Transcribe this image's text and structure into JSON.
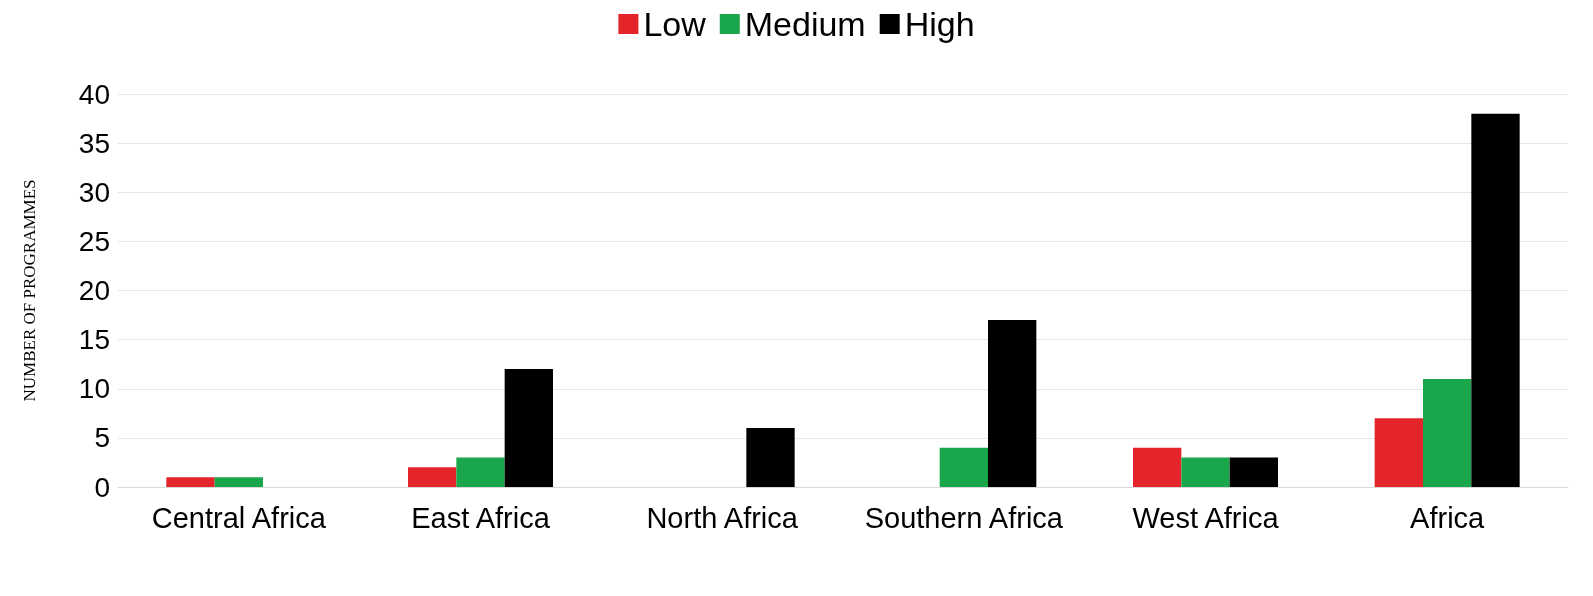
{
  "chart_data": {
    "type": "bar",
    "ylabel": "NUMBER OF PROGRAMMES",
    "categories": [
      "Central Africa",
      "East Africa",
      "North Africa",
      "Southern Africa",
      "West Africa",
      "Africa"
    ],
    "series": [
      {
        "name": "Low",
        "color": "#e3242b",
        "values": [
          1,
          2,
          0,
          0,
          4,
          7
        ]
      },
      {
        "name": "Medium",
        "color": "#1aa64a",
        "values": [
          1,
          3,
          0,
          4,
          3,
          11
        ]
      },
      {
        "name": "High",
        "color": "#000000",
        "values": [
          0,
          12,
          6,
          17,
          3,
          38
        ]
      }
    ],
    "ylim": [
      0,
      40
    ],
    "yticks": [
      0,
      5,
      10,
      15,
      20,
      25,
      30,
      35,
      40
    ],
    "grid": "y",
    "legend": "top"
  }
}
